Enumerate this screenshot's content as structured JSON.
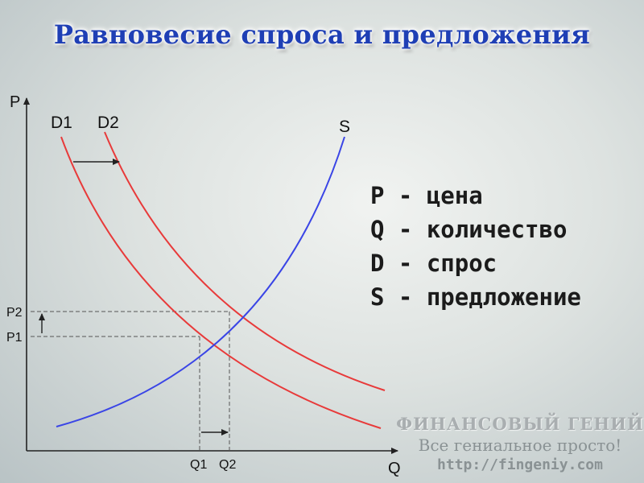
{
  "title": "Равновесие спроса и предложения",
  "axes": {
    "y_label": "P",
    "x_label": "Q"
  },
  "curves": {
    "d1_label": "D1",
    "d2_label": "D2",
    "s_label": "S"
  },
  "ticks": {
    "p1": "P1",
    "p2": "P2",
    "q1": "Q1",
    "q2": "Q2"
  },
  "legend": {
    "items": [
      "P - цена",
      "Q - количество",
      "D - спрос",
      "S - предложение"
    ]
  },
  "watermark": {
    "brand": "ФИНАНСОВЫЙ ГЕНИЙ",
    "slogan": "Все гениальное просто!",
    "url": "http://fingeniy.com"
  },
  "colors": {
    "demand": "#e83a3a",
    "supply": "#3a45e6",
    "axis": "#222222",
    "title": "#1f3fb5"
  }
}
